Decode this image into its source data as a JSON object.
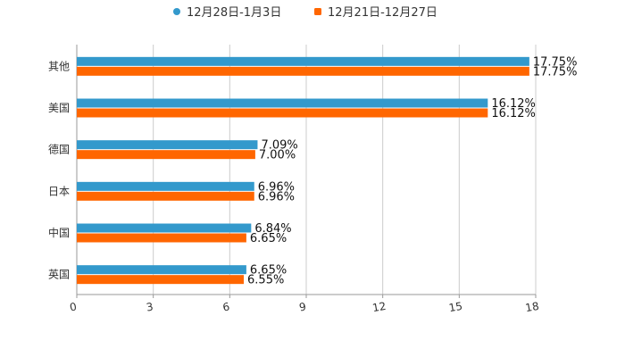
{
  "chart_data": {
    "type": "bar",
    "orientation": "horizontal",
    "title": "",
    "xlabel": "",
    "ylabel": "",
    "categories": [
      "其他",
      "美国",
      "德国",
      "日本",
      "中国",
      "英国"
    ],
    "series": [
      {
        "name": "12月28日-1月3日",
        "color": "#3399cc",
        "values": [
          17.75,
          16.12,
          7.09,
          6.96,
          6.84,
          6.65
        ],
        "labels": [
          "17.75%",
          "16.12%",
          "7.09%",
          "6.96%",
          "6.84%",
          "6.65%"
        ]
      },
      {
        "name": "12月21日-12月27日",
        "color": "#ff6600",
        "values": [
          17.75,
          16.12,
          7.0,
          6.96,
          6.65,
          6.55
        ],
        "labels": [
          "17.75%",
          "16.12%",
          "7.00%",
          "6.96%",
          "6.65%",
          "6.55%"
        ]
      }
    ],
    "xlim": [
      0,
      18
    ],
    "xticks": [
      0,
      3,
      6,
      9,
      12,
      15,
      18
    ],
    "xtick_labels": [
      "0",
      "3",
      "6",
      "9",
      "12",
      "15",
      "18"
    ],
    "grid": "vertical",
    "legend_position": "top-center"
  }
}
